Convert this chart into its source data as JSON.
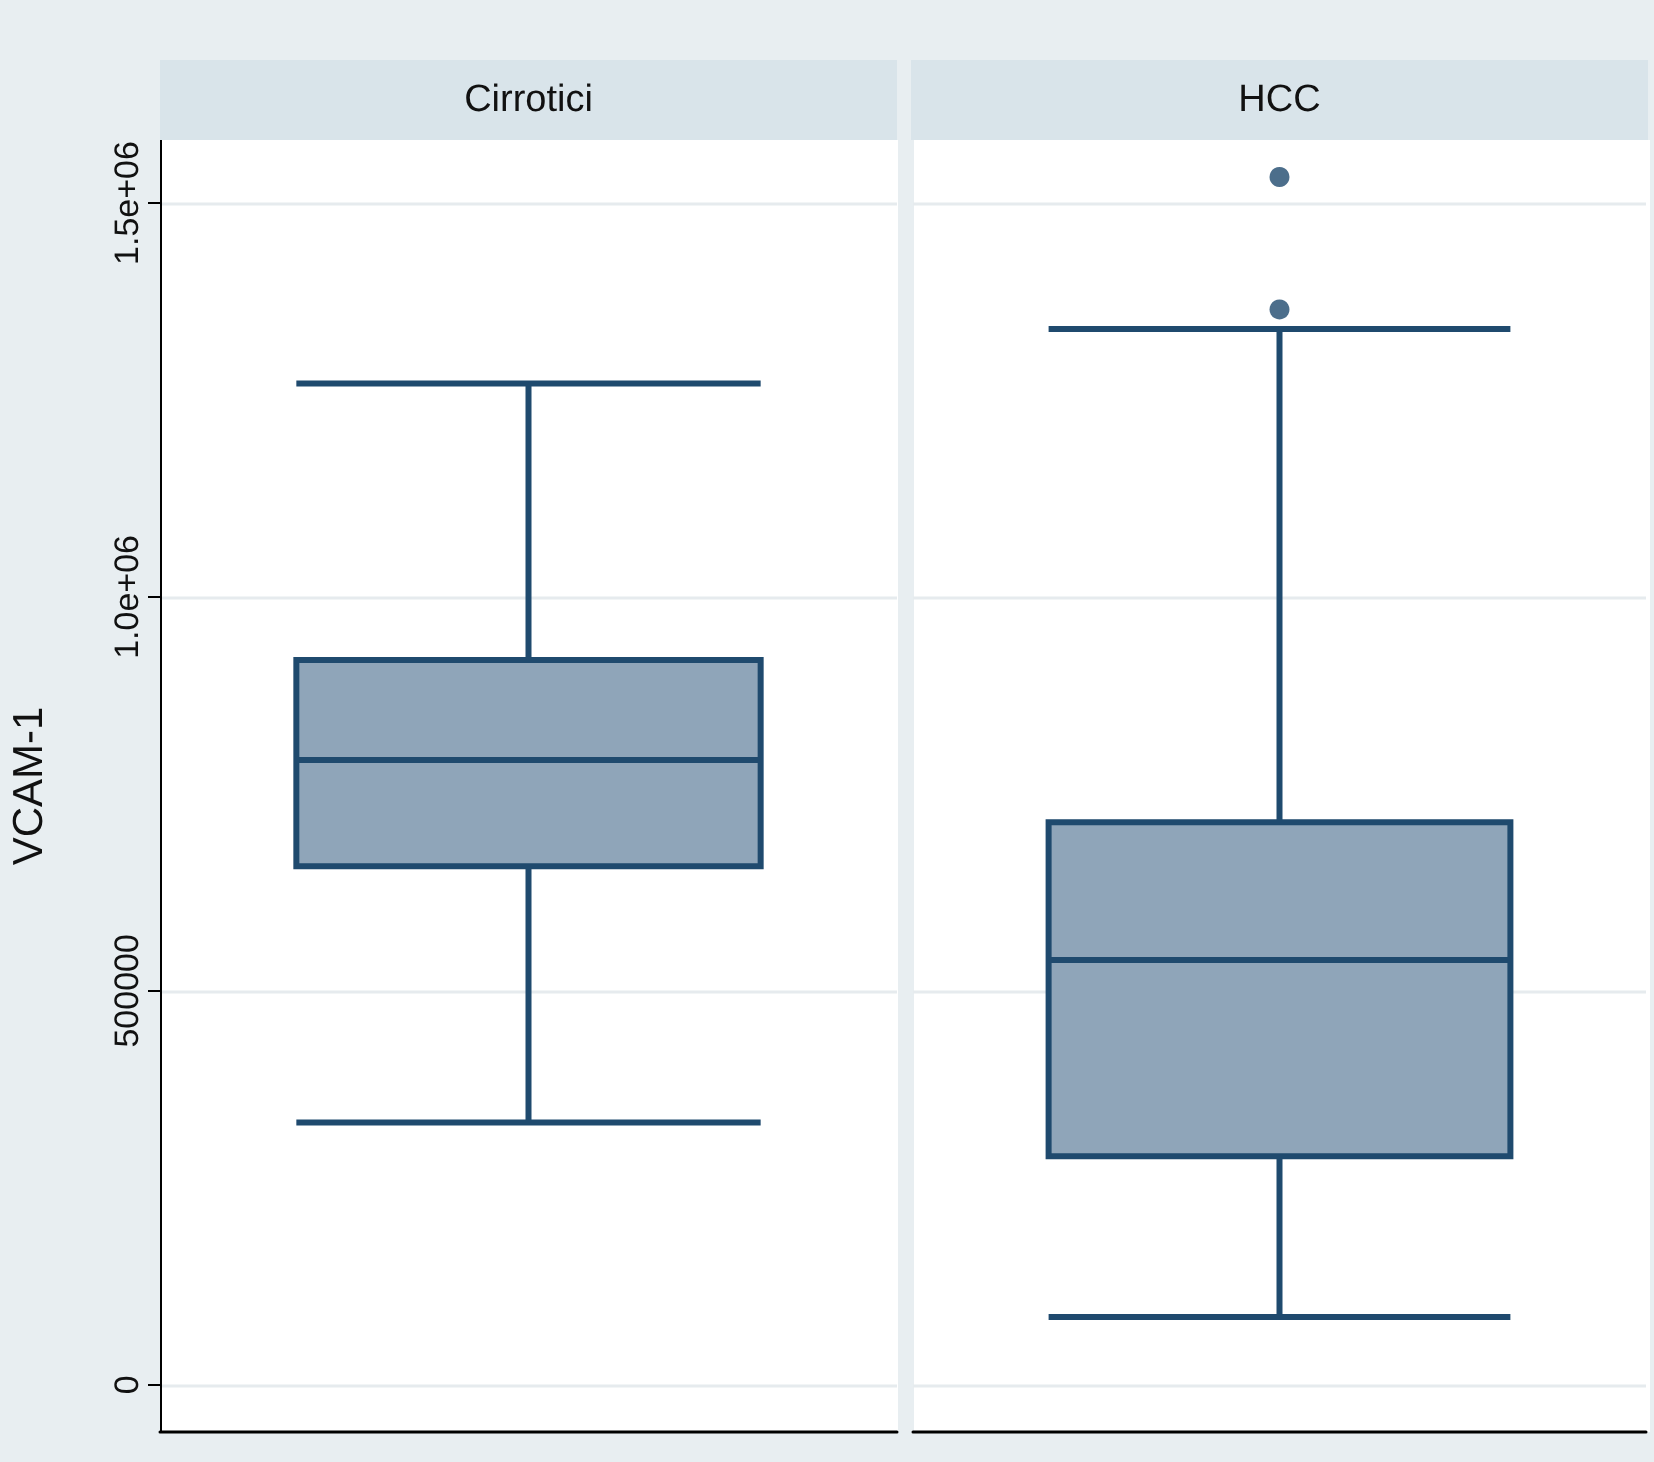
{
  "chart_data": {
    "type": "box",
    "ylabel": "VCAM-1",
    "categories": [
      "Cirrotici",
      "HCC"
    ],
    "color": "#8fa5b9",
    "boxes": [
      {
        "low": 333000,
        "q1": 658000,
        "median": 793000,
        "q3": 920000,
        "high": 1271000
      },
      {
        "low": 86000,
        "q1": 290000,
        "median": 539000,
        "q3": 714000,
        "high": 1340000,
        "outliers": [
          1365000,
          1533000
        ]
      }
    ],
    "ylim": [
      -60000,
      1580000
    ],
    "yticks": [
      0,
      500000,
      {
        "value": 1000000,
        "label": "1.0e+06"
      },
      {
        "value": 1500000,
        "label": "1.5e+06"
      }
    ],
    "grid": "y"
  }
}
